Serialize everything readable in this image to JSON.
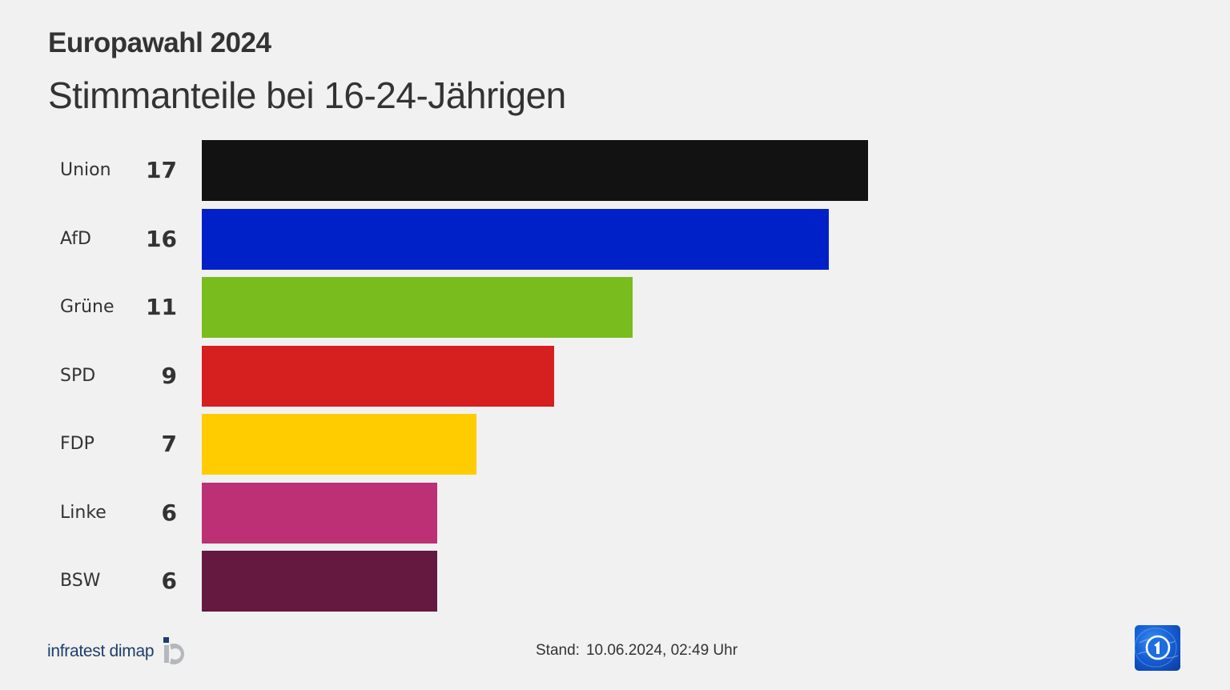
{
  "header": {
    "title": "Europawahl 2024",
    "subtitle": "Stimmanteile bei 16-24-Jährigen"
  },
  "chart_data": {
    "type": "bar",
    "orientation": "horizontal",
    "title": "Europawahl 2024",
    "subtitle": "Stimmanteile bei 16-24-Jährigen",
    "xlabel": "",
    "ylabel": "",
    "unit": "%",
    "categories": [
      "Union",
      "AfD",
      "Grüne",
      "SPD",
      "FDP",
      "Linke",
      "BSW"
    ],
    "values": [
      17,
      16,
      11,
      9,
      7,
      6,
      6
    ],
    "colors": [
      "#121212",
      "#0021c8",
      "#79bc1e",
      "#d61f1f",
      "#ffcc00",
      "#bc3175",
      "#661940"
    ],
    "grid": false,
    "legend": null,
    "xlim": [
      0,
      17
    ]
  },
  "rows": [
    {
      "label": "Union",
      "value": "17",
      "color": "#121212"
    },
    {
      "label": "AfD",
      "value": "16",
      "color": "#0021c8"
    },
    {
      "label": "Grüne",
      "value": "11",
      "color": "#79bc1e"
    },
    {
      "label": "SPD",
      "value": "9",
      "color": "#d61f1f"
    },
    {
      "label": "FDP",
      "value": "7",
      "color": "#ffcc00"
    },
    {
      "label": "Linke",
      "value": "6",
      "color": "#bc3175"
    },
    {
      "label": "BSW",
      "value": "6",
      "color": "#661940"
    }
  ],
  "footer": {
    "source_logo_text": "infratest dimap",
    "stand_label": "Stand:",
    "stand_value": "10.06.2024, 02:49 Uhr",
    "broadcaster_logo": "tagesschau-logo-icon"
  },
  "colors": {
    "background": "#f1f1f1",
    "text": "#333333",
    "logo_blue": "#1b3f6b",
    "logo_gray": "#b4b8bc"
  }
}
